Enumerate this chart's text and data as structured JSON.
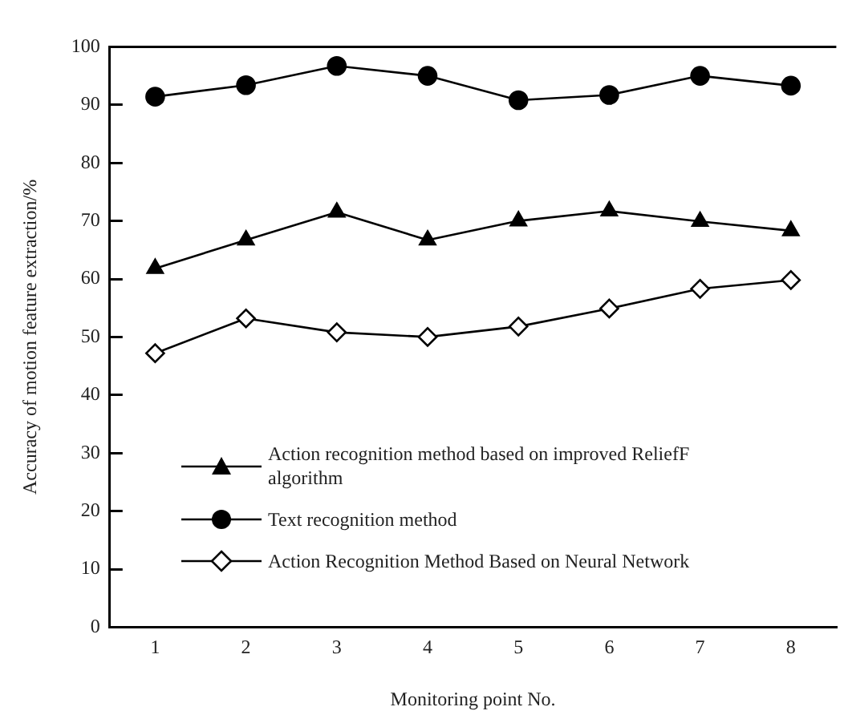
{
  "chart_data": {
    "type": "line",
    "xlabel": "Monitoring point No.",
    "ylabel": "Accuracy of motion feature extraction/%",
    "categories": [
      "1",
      "2",
      "3",
      "4",
      "5",
      "6",
      "7",
      "8"
    ],
    "ylim": [
      0,
      100
    ],
    "yticks": [
      0,
      10,
      20,
      30,
      40,
      50,
      60,
      70,
      80,
      90,
      100
    ],
    "grid": false,
    "legend": "bottom left",
    "series": [
      {
        "name": "Action recognition method based on improved ReliefF algorithm",
        "color": "#000000",
        "marker": "triangle",
        "values": [
          61.8,
          66.7,
          71.5,
          66.7,
          70,
          71.7,
          69.9,
          68.3
        ]
      },
      {
        "name": "Text recognition method",
        "color": "#000000",
        "marker": "circle",
        "values": [
          91.4,
          93.4,
          96.7,
          95,
          90.8,
          91.7,
          95,
          93.3
        ]
      },
      {
        "name": "Action Recognition Method Based on Neural Network",
        "color": "#000000",
        "marker": "diamond",
        "values": [
          47.2,
          53.2,
          50.8,
          50,
          51.8,
          54.9,
          58.3,
          59.8
        ]
      }
    ]
  }
}
